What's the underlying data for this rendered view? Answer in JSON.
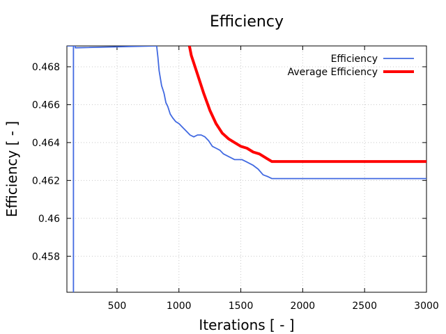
{
  "chart_data": {
    "type": "line",
    "title": "Efficiency",
    "xlabel": "Iterations [ - ]",
    "ylabel": "Efficiency [ - ]",
    "xlim": [
      95,
      3000
    ],
    "ylim": [
      0.4561,
      0.4691
    ],
    "xticks": [
      500,
      1000,
      1500,
      2000,
      2500,
      3000
    ],
    "xtick_labels": [
      "500",
      "1000",
      "1500",
      "2000",
      "2500",
      "3000"
    ],
    "yticks": [
      0.458,
      0.46,
      0.462,
      0.464,
      0.466,
      0.468
    ],
    "ytick_labels": [
      "0.458",
      "0.46",
      "0.462",
      "0.464",
      "0.466",
      "0.468"
    ],
    "grid": true,
    "legend_position": "top-right",
    "series": [
      {
        "name": "Efficiency",
        "color": "#4169e1",
        "x": [
          148,
          148,
          148,
          148,
          100,
          163,
          163,
          820,
          830,
          840,
          850,
          860,
          870,
          880,
          895,
          910,
          930,
          950,
          975,
          1000,
          1030,
          1060,
          1090,
          1120,
          1150,
          1180,
          1210,
          1240,
          1270,
          1300,
          1330,
          1360,
          1390,
          1420,
          1450,
          1480,
          1510,
          1540,
          1570,
          1600,
          1640,
          1680,
          1720,
          1750,
          1800,
          2000,
          2500,
          3000
        ],
        "y": [
          0.4561,
          0.4691,
          0.4691,
          0.4691,
          0.4691,
          0.4691,
          0.469,
          0.4691,
          0.4685,
          0.4678,
          0.4674,
          0.467,
          0.4668,
          0.4666,
          0.4661,
          0.4659,
          0.4655,
          0.4653,
          0.4651,
          0.465,
          0.4648,
          0.4646,
          0.4644,
          0.4643,
          0.4644,
          0.4644,
          0.4643,
          0.4641,
          0.4638,
          0.4637,
          0.4636,
          0.4634,
          0.4633,
          0.4632,
          0.4631,
          0.4631,
          0.4631,
          0.463,
          0.4629,
          0.4628,
          0.4626,
          0.4623,
          0.4622,
          0.4621,
          0.4621,
          0.4621,
          0.4621,
          0.4621
        ]
      },
      {
        "name": "Average Efficiency",
        "color": "#ff0000",
        "x": [
          1085,
          1100,
          1150,
          1200,
          1250,
          1300,
          1350,
          1400,
          1450,
          1500,
          1550,
          1600,
          1650,
          1700,
          1750,
          2000,
          2500,
          3000
        ],
        "y": [
          0.4691,
          0.4686,
          0.4676,
          0.4666,
          0.4657,
          0.465,
          0.4645,
          0.4642,
          0.464,
          0.4638,
          0.4637,
          0.4635,
          0.4634,
          0.4632,
          0.463,
          0.463,
          0.463,
          0.463
        ]
      }
    ]
  }
}
